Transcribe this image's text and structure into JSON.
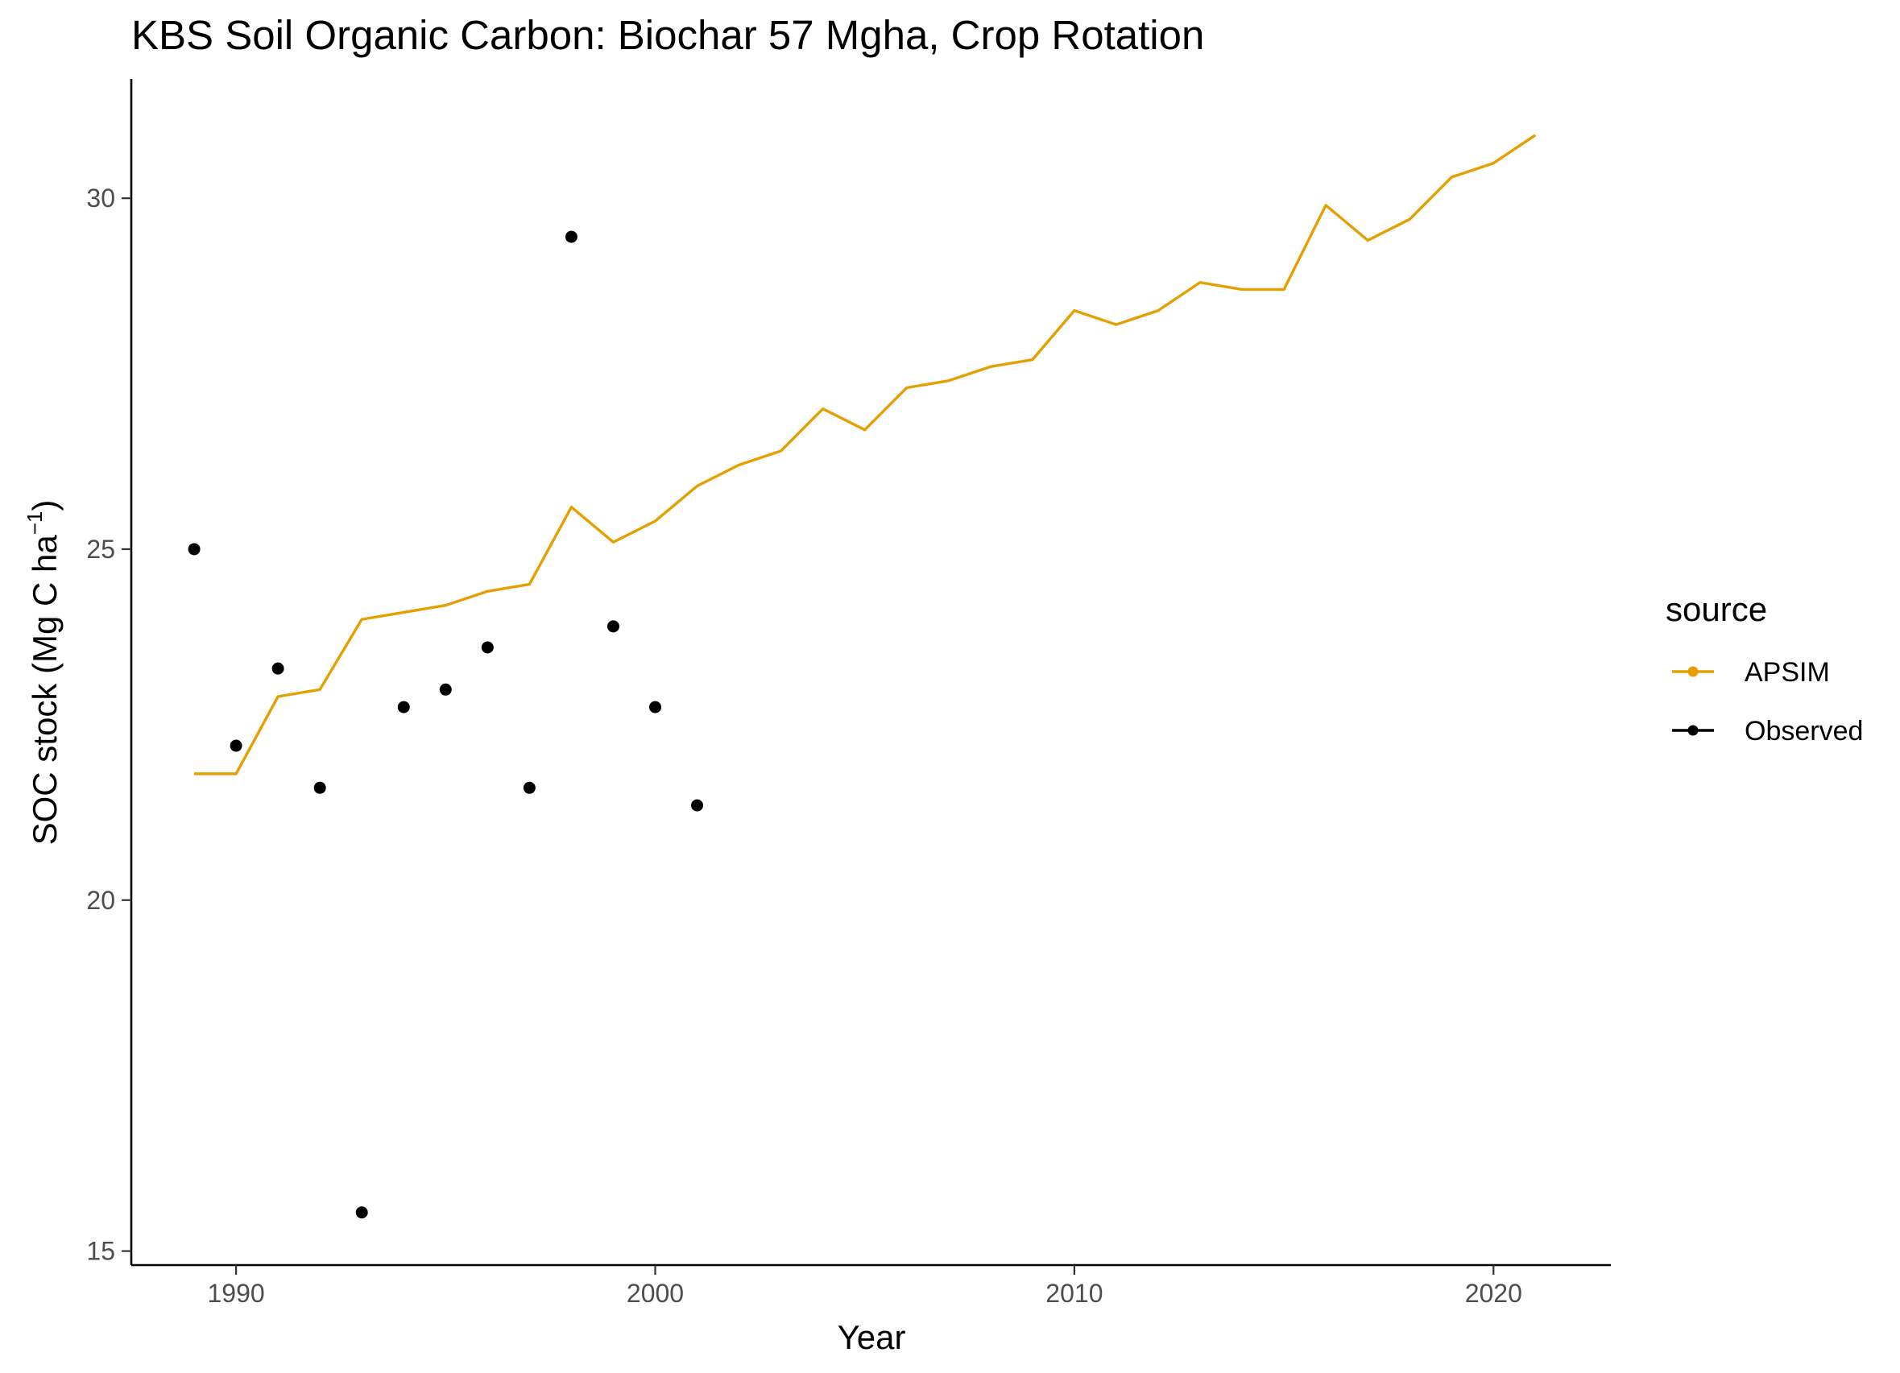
{
  "chart_data": {
    "type": "line",
    "title": "KBS Soil Organic Carbon:  Biochar 57 Mgha, Crop Rotation",
    "xlabel": "Year",
    "ylabel_main": "SOC stock (Mg C ha",
    "ylabel_sup": "−1",
    "ylabel_close": ")",
    "xlim": [
      1987.5,
      2022.8
    ],
    "ylim": [
      14.8,
      31.7
    ],
    "x_ticks": [
      {
        "value": 1990,
        "label": "1990"
      },
      {
        "value": 2000,
        "label": "2000"
      },
      {
        "value": 2010,
        "label": "2010"
      },
      {
        "value": 2020,
        "label": "2020"
      }
    ],
    "y_ticks": [
      {
        "value": 15,
        "label": "15"
      },
      {
        "value": 20,
        "label": "20"
      },
      {
        "value": 25,
        "label": "25"
      },
      {
        "value": 30,
        "label": "30"
      }
    ],
    "grid": false,
    "legend": {
      "title": "source",
      "position": "right",
      "entries": [
        {
          "name": "APSIM",
          "color": "#E69F00"
        },
        {
          "name": "Observed",
          "color": "#000000"
        }
      ]
    },
    "series": [
      {
        "name": "APSIM",
        "style": "line",
        "color": "#E69F00",
        "x": [
          1989,
          1990,
          1991,
          1992,
          1993,
          1994,
          1995,
          1996,
          1997,
          1998,
          1999,
          2000,
          2001,
          2002,
          2003,
          2004,
          2005,
          2006,
          2007,
          2008,
          2009,
          2010,
          2011,
          2012,
          2013,
          2014,
          2015,
          2016,
          2017,
          2018,
          2019,
          2020,
          2021
        ],
        "y": [
          21.8,
          21.8,
          22.9,
          23.0,
          24.0,
          24.1,
          24.2,
          24.4,
          24.5,
          25.6,
          25.1,
          25.4,
          25.9,
          26.2,
          26.4,
          27.0,
          26.7,
          27.3,
          27.4,
          27.6,
          27.7,
          28.4,
          28.2,
          28.4,
          28.8,
          28.7,
          28.7,
          29.9,
          29.4,
          29.7,
          30.3,
          30.5,
          30.9
        ]
      },
      {
        "name": "Observed",
        "style": "points",
        "color": "#000000",
        "x": [
          1989,
          1990,
          1991,
          1992,
          1993,
          1994,
          1995,
          1996,
          1997,
          1998,
          1999,
          2000,
          2001
        ],
        "y": [
          25.0,
          22.2,
          23.3,
          21.6,
          15.55,
          22.75,
          23.0,
          23.6,
          21.6,
          29.45,
          23.9,
          22.75,
          21.35
        ]
      }
    ]
  }
}
